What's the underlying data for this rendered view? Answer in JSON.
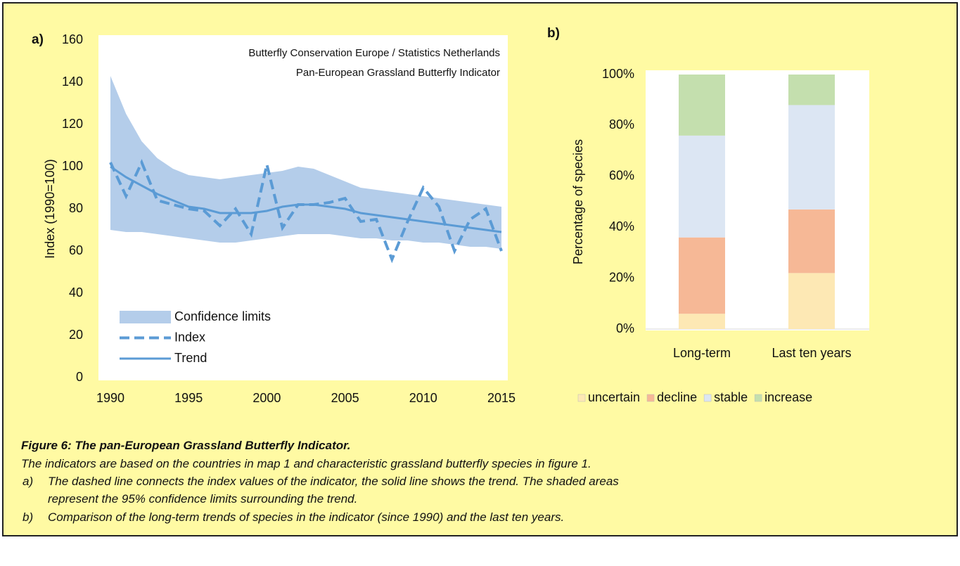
{
  "chart_data": [
    {
      "type": "line",
      "panel_label": "a)",
      "annotations": [
        "Butterfly Conservation Europe / Statistics Netherlands",
        "Pan-European Grassland Butterfly Indicator"
      ],
      "ylabel": "Index (1990=100)",
      "x": [
        1990,
        1991,
        1992,
        1993,
        1994,
        1995,
        1996,
        1997,
        1998,
        1999,
        2000,
        2001,
        2002,
        2003,
        2004,
        2005,
        2006,
        2007,
        2008,
        2009,
        2010,
        2011,
        2012,
        2013,
        2014,
        2015
      ],
      "xlim": [
        1990,
        2015
      ],
      "xticks": [
        1990,
        1995,
        2000,
        2005,
        2010,
        2015
      ],
      "ylim": [
        0,
        160
      ],
      "yticks": [
        0,
        20,
        40,
        60,
        80,
        100,
        120,
        140,
        160
      ],
      "legend": "lower left",
      "series": [
        {
          "name": "Confidence limits",
          "color": "#b4cdea",
          "style": "band",
          "upper": [
            143,
            125,
            112,
            104,
            99,
            96,
            95,
            94,
            95,
            96,
            97,
            98,
            100,
            99,
            96,
            93,
            90,
            89,
            88,
            87,
            86,
            85,
            84,
            83,
            82,
            81
          ],
          "lower": [
            70,
            69,
            69,
            68,
            67,
            66,
            65,
            64,
            64,
            65,
            66,
            67,
            68,
            68,
            68,
            67,
            66,
            66,
            65,
            65,
            64,
            64,
            63,
            62,
            62,
            61
          ]
        },
        {
          "name": "Index",
          "color": "#5b9bd5",
          "style": "dashed",
          "values": [
            102,
            86,
            102,
            84,
            82,
            80,
            79,
            72,
            80,
            68,
            101,
            71,
            82,
            82,
            83,
            85,
            74,
            75,
            56,
            74,
            90,
            81,
            60,
            75,
            80,
            60
          ]
        },
        {
          "name": "Trend",
          "color": "#5b9bd5",
          "style": "solid",
          "values": [
            100,
            95,
            91,
            87,
            84,
            81,
            80,
            78,
            78,
            78,
            79,
            81,
            82,
            82,
            81,
            80,
            78,
            77,
            76,
            75,
            74,
            73,
            72,
            71,
            70,
            69
          ]
        }
      ]
    },
    {
      "type": "bar",
      "panel_label": "b)",
      "ylabel": "Percentage of species",
      "categories": [
        "Long-term",
        "Last ten years"
      ],
      "stacked": true,
      "ylim": [
        0,
        100
      ],
      "yticks": [
        {
          "value": 0,
          "label": "0%"
        },
        {
          "value": 20,
          "label": "20%"
        },
        {
          "value": 40,
          "label": "40%"
        },
        {
          "value": 60,
          "label": "60%"
        },
        {
          "value": 80,
          "label": "80%"
        },
        {
          "value": 100,
          "label": "100%"
        }
      ],
      "legend": "bottom",
      "series": [
        {
          "name": "uncertain",
          "color": "#fde8b4",
          "values": [
            6,
            22
          ]
        },
        {
          "name": "decline",
          "color": "#f6b896",
          "values": [
            30,
            25
          ]
        },
        {
          "name": "stable",
          "color": "#dce6f3",
          "values": [
            40,
            41
          ]
        },
        {
          "name": "increase",
          "color": "#c4dfae",
          "values": [
            24,
            12
          ]
        }
      ]
    }
  ],
  "caption": {
    "title": "Figure 6: The pan-European Grassland Butterfly Indicator.",
    "text": "The indicators are based on the countries in map 1 and characteristic grassland butterfly species in figure 1.",
    "items": [
      {
        "label": "a)",
        "lines": [
          "The dashed line connects the index values of the indicator, the solid line shows the trend. The shaded areas",
          "represent the 95% confidence limits surrounding the trend."
        ]
      },
      {
        "label": "b)",
        "lines": [
          "Comparison of the long-term trends of species in the indicator (since 1990) and the last ten years."
        ]
      }
    ]
  }
}
